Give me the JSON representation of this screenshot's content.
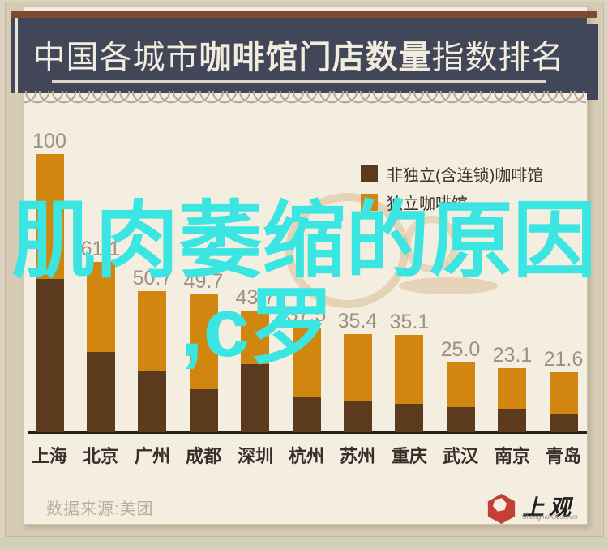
{
  "header": {
    "title_prefix": "中国各城市",
    "title_bold": "咖啡馆门店数量",
    "title_suffix": "指数排名"
  },
  "legend": {
    "items": [
      {
        "label": "非独立(含连锁)咖啡馆",
        "color": "#5b3a1d"
      },
      {
        "label": "独立咖啡馆",
        "color": "#d1860f"
      }
    ]
  },
  "overlay": {
    "line1": "肌肉萎缩的原因",
    "line2": ",c罗",
    "color": "#3ae5e2"
  },
  "footer": {
    "source": "数据来源:美团",
    "logo_text": "上观",
    "logo_subtext": "Shanghai Observer",
    "logo_color": "#c43f38"
  },
  "chart_data": {
    "type": "bar",
    "stacked": true,
    "title": "中国各城市咖啡馆门店数量指数排名",
    "categories": [
      "上海",
      "北京",
      "广州",
      "成都",
      "深圳",
      "杭州",
      "苏州",
      "重庆",
      "武汉",
      "南京",
      "青岛"
    ],
    "totals": [
      100,
      61.1,
      50.7,
      49.7,
      43.7,
      37.5,
      35.4,
      35.1,
      25.0,
      23.1,
      21.6
    ],
    "value_labels": [
      "100",
      "61.1",
      "50.7",
      "49.7",
      "43.7",
      "37.5",
      "35.4",
      "35.1",
      "25.0",
      "23.1",
      "21.6"
    ],
    "series": [
      {
        "name": "非独立(含连锁)咖啡馆",
        "color": "#5b3a1d",
        "values": [
          55.0,
          29.0,
          22.0,
          15.5,
          24.5,
          12.8,
          11.4,
          10.2,
          9.0,
          8.5,
          6.4
        ]
      },
      {
        "name": "独立咖啡馆",
        "color": "#d1860f",
        "values": [
          45.0,
          32.1,
          28.7,
          34.2,
          19.2,
          24.7,
          24.0,
          24.9,
          16.0,
          14.6,
          15.2
        ]
      }
    ],
    "ylim": [
      0,
      100
    ],
    "grid": false,
    "legend_position": "top-right",
    "source": "美团"
  }
}
